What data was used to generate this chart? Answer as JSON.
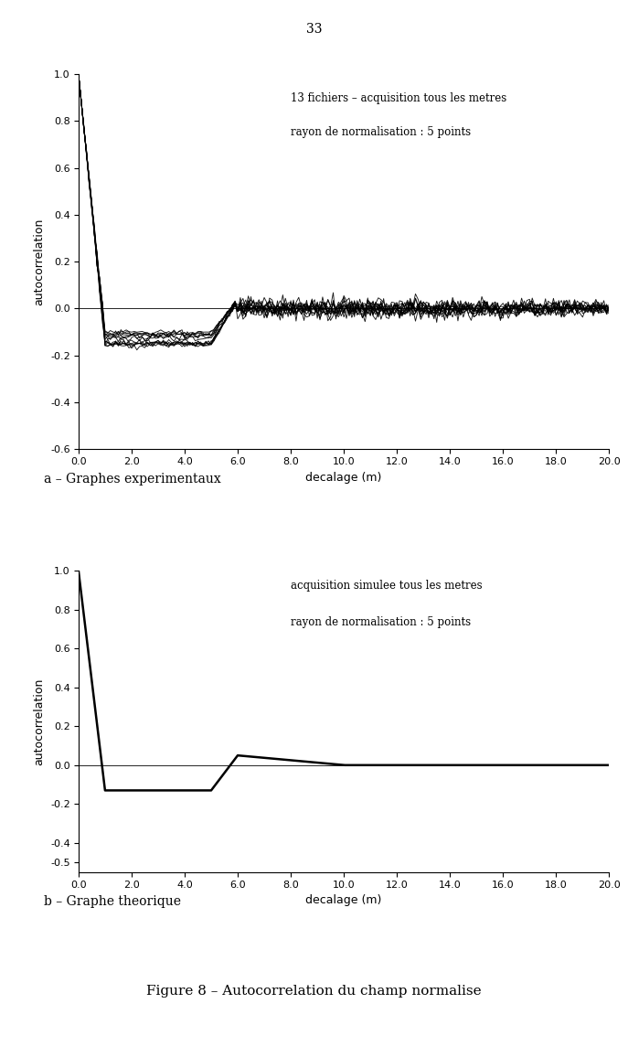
{
  "page_number": "33",
  "subplot_a": {
    "annotation_line1": "13 fichiers – acquisition tous les metres",
    "annotation_line2": "rayon de normalisation : 5 points",
    "xlabel": "decalage (m)",
    "ylabel": "autocorrelation",
    "xlim": [
      0.0,
      20.0
    ],
    "ylim": [
      -0.6,
      1.0
    ],
    "yticks": [
      -0.6,
      -0.4,
      -0.2,
      0.0,
      0.2,
      0.4,
      0.6,
      0.8,
      1.0
    ],
    "xticks": [
      0.0,
      2.0,
      4.0,
      6.0,
      8.0,
      10.0,
      12.0,
      14.0,
      16.0,
      18.0,
      20.0
    ],
    "caption": "a – Graphes experimentaux",
    "num_curves": 13
  },
  "subplot_b": {
    "annotation_line1": "acquisition simulee tous les metres",
    "annotation_line2": "rayon de normalisation : 5 points",
    "xlabel": "decalage (m)",
    "ylabel": "autocorrelation",
    "xlim": [
      0.0,
      20.0
    ],
    "ylim": [
      -0.55,
      1.0
    ],
    "yticks": [
      -0.5,
      -0.4,
      -0.2,
      0.0,
      0.2,
      0.4,
      0.6,
      0.8,
      1.0
    ],
    "xticks": [
      0.0,
      2.0,
      4.0,
      6.0,
      8.0,
      10.0,
      12.0,
      14.0,
      16.0,
      18.0,
      20.0
    ],
    "caption": "b – Graphe theorique",
    "theo_x": [
      0.0,
      1.0,
      5.0,
      6.0,
      10.0,
      20.0
    ],
    "theo_y": [
      1.0,
      -0.13,
      -0.13,
      0.05,
      0.0,
      0.0
    ]
  },
  "figure_caption": "Figure 8 – Autocorrelation du champ normalise",
  "line_color": "#000000",
  "bg_color": "#ffffff"
}
